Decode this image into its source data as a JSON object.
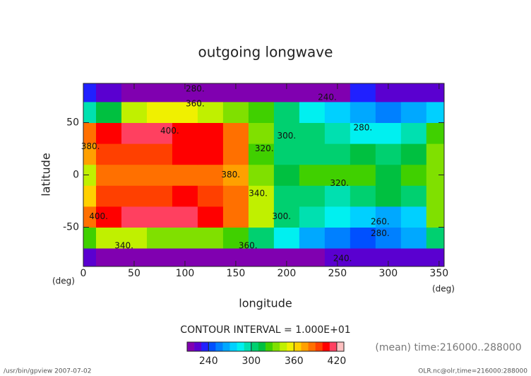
{
  "chart_data": {
    "type": "heatmap",
    "title": "outgoing longwave",
    "x_label": "longitude",
    "y_label": "latitude",
    "x_unit": "(deg)",
    "y_unit": "(deg)",
    "x": [
      0,
      25,
      50,
      75,
      100,
      125,
      150,
      175,
      200,
      225,
      250,
      275,
      300,
      325,
      350
    ],
    "y": [
      -80,
      -60,
      -40,
      -20,
      0,
      20,
      40,
      60,
      80
    ],
    "values": [
      [
        220,
        210,
        200,
        200,
        195,
        195,
        200,
        200,
        210,
        215,
        220,
        220,
        225,
        225,
        225
      ],
      [
        320,
        340,
        340,
        330,
        330,
        330,
        320,
        300,
        280,
        260,
        250,
        240,
        250,
        260,
        300
      ],
      [
        380,
        400,
        410,
        410,
        410,
        400,
        380,
        340,
        300,
        290,
        280,
        270,
        260,
        270,
        330
      ],
      [
        360,
        390,
        390,
        390,
        400,
        390,
        380,
        340,
        300,
        300,
        290,
        300,
        310,
        300,
        330
      ],
      [
        340,
        380,
        380,
        380,
        380,
        380,
        370,
        330,
        310,
        320,
        320,
        320,
        310,
        320,
        330
      ],
      [
        370,
        390,
        390,
        390,
        400,
        400,
        380,
        320,
        300,
        300,
        300,
        310,
        300,
        310,
        330
      ],
      [
        380,
        400,
        410,
        410,
        400,
        400,
        380,
        330,
        300,
        300,
        290,
        280,
        280,
        290,
        320
      ],
      [
        290,
        310,
        340,
        350,
        350,
        340,
        330,
        320,
        300,
        280,
        270,
        260,
        250,
        260,
        270
      ],
      [
        230,
        225,
        215,
        215,
        215,
        215,
        215,
        195,
        185,
        200,
        215,
        230,
        225,
        225,
        225
      ]
    ],
    "xlim": [
      0,
      355
    ],
    "ylim": [
      -87.5,
      87.5
    ],
    "xticks": [
      0,
      50,
      100,
      150,
      200,
      250,
      300,
      350
    ],
    "yticks": [
      -50,
      0,
      50
    ],
    "levels": [
      220,
      230,
      240,
      250,
      260,
      270,
      280,
      290,
      300,
      310,
      320,
      330,
      340,
      350,
      360,
      370,
      380,
      390,
      400,
      410,
      420
    ],
    "colors": [
      "#8000b0",
      "#5a00d0",
      "#2020ff",
      "#0050ff",
      "#0080ff",
      "#00a8ff",
      "#00d0ff",
      "#00f0f0",
      "#00e0b0",
      "#00d070",
      "#00c040",
      "#40d000",
      "#80e000",
      "#c0f000",
      "#f0f000",
      "#ffd000",
      "#ffa000",
      "#ff7000",
      "#ff4000",
      "#ff0000",
      "#ff4060",
      "#ffc0c0"
    ],
    "colorbar_ticks": [
      240,
      300,
      360,
      420
    ],
    "contour_labels": [
      {
        "text": "400.",
        "x": 85,
        "y": 42
      },
      {
        "text": "380.",
        "x": 7,
        "y": 27
      },
      {
        "text": "400.",
        "x": 15,
        "y": -40
      },
      {
        "text": "340.",
        "x": 40,
        "y": -68
      },
      {
        "text": "380.",
        "x": 145,
        "y": 0
      },
      {
        "text": "360.",
        "x": 162,
        "y": -68
      },
      {
        "text": "300.",
        "x": 200,
        "y": 37
      },
      {
        "text": "280.",
        "x": 275,
        "y": 45
      },
      {
        "text": "240.",
        "x": 240,
        "y": 74
      },
      {
        "text": "320.",
        "x": 252,
        "y": -8
      },
      {
        "text": "300.",
        "x": 195,
        "y": -40
      },
      {
        "text": "260.",
        "x": 292,
        "y": -45
      },
      {
        "text": "280.",
        "x": 292,
        "y": -56
      },
      {
        "text": "240.",
        "x": 255,
        "y": -80
      },
      {
        "text": "340.",
        "x": 172,
        "y": -18
      },
      {
        "text": "320.",
        "x": 178,
        "y": 25
      },
      {
        "text": "360.",
        "x": 110,
        "y": 68
      },
      {
        "text": "280.",
        "x": 110,
        "y": 82
      }
    ],
    "contour_interval": "CONTOUR INTERVAL = 1.000E+01",
    "time_note": "(mean) time:216000..288000",
    "footer_left": "/usr/bin/gpview  2007-07-02",
    "footer_right": "OLR.nc@olr,time=216000:288000"
  }
}
